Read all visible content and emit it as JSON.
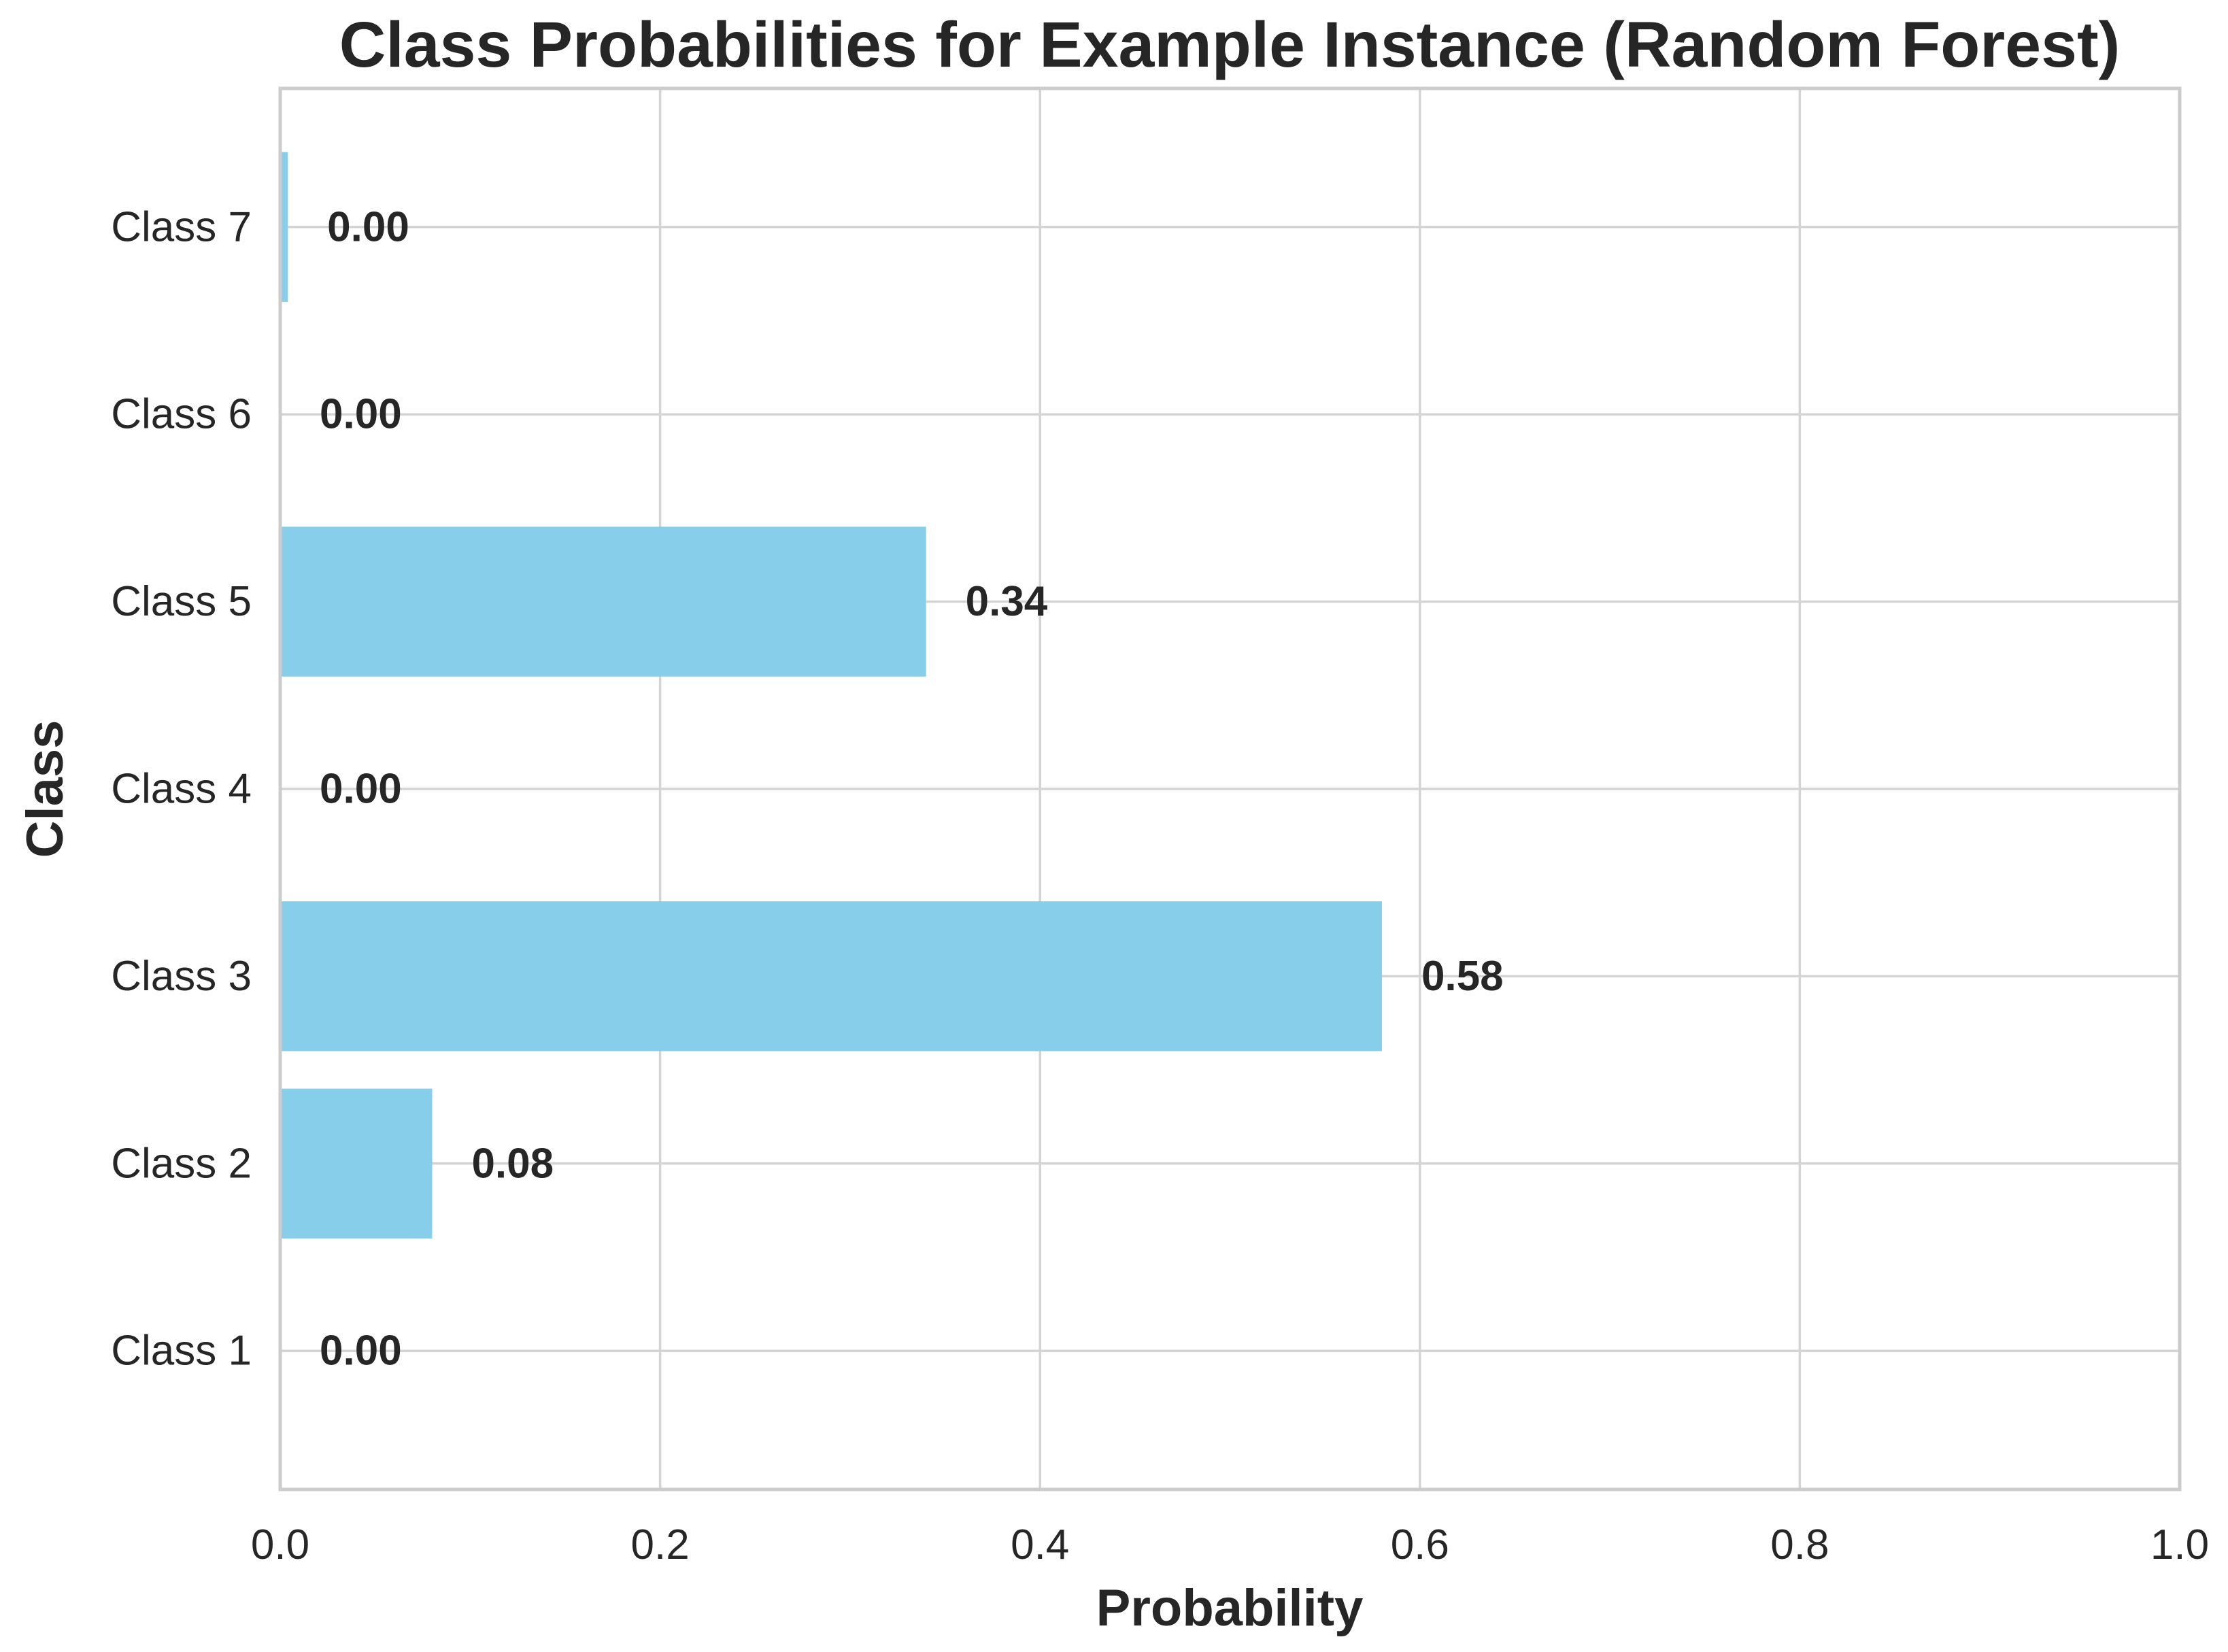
{
  "chart_data": {
    "type": "bar",
    "orientation": "horizontal",
    "title": "Class Probabilities for Example Instance (Random Forest)",
    "xlabel": "Probability",
    "ylabel": "Class",
    "categories": [
      "Class 1",
      "Class 2",
      "Class 3",
      "Class 4",
      "Class 5",
      "Class 6",
      "Class 7"
    ],
    "values": [
      0.0,
      0.08,
      0.58,
      0.0,
      0.34,
      0.0,
      0.004
    ],
    "value_labels": [
      "0.00",
      "0.08",
      "0.58",
      "0.00",
      "0.34",
      "0.00",
      "0.00"
    ],
    "category_order": "Class 1 at bottom, Class 7 at top",
    "x_ticks": [
      0.0,
      0.2,
      0.4,
      0.6,
      0.8,
      1.0
    ],
    "x_tick_labels": [
      "0.0",
      "0.2",
      "0.4",
      "0.6",
      "0.8",
      "1.0"
    ],
    "xlim": [
      0.0,
      1.0
    ],
    "grid": true,
    "legend": false,
    "bar_color": "#87CEEB",
    "grid_color": "#D4D4D4",
    "spine_color": "#CCCCCC",
    "text_color": "#262626"
  }
}
